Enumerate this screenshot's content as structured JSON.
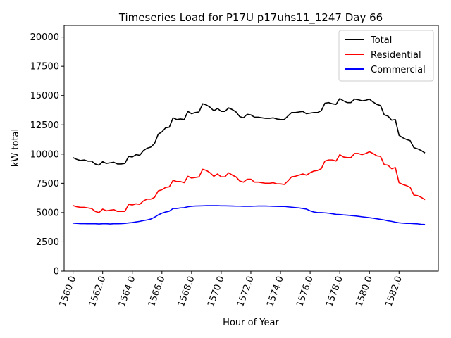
{
  "chart_data": {
    "type": "line",
    "title": "Timeseries Load for P17U p17uhs11_1247  Day 66",
    "xlabel": "Hour of Year",
    "ylabel": "kW total",
    "xlim": [
      1559.4,
      1584.65
    ],
    "ylim": [
      0,
      21000
    ],
    "x_ticks": [
      1560,
      1562,
      1564,
      1566,
      1568,
      1570,
      1572,
      1574,
      1576,
      1578,
      1580,
      1582
    ],
    "x_tick_labels": [
      "1560.0",
      "1562.0",
      "1564.0",
      "1566.0",
      "1568.0",
      "1570.0",
      "1572.0",
      "1574.0",
      "1576.0",
      "1578.0",
      "1580.0",
      "1582.0"
    ],
    "y_ticks": [
      0,
      2500,
      5000,
      7500,
      10000,
      12500,
      15000,
      17500,
      20000
    ],
    "y_tick_labels": [
      "0",
      "2500",
      "5000",
      "7500",
      "10000",
      "12500",
      "15000",
      "17500",
      "20000"
    ],
    "legend_position": "top-right",
    "x_start": 1560,
    "x_step": 0.25,
    "series": [
      {
        "name": "Total",
        "color": "#000000",
        "values": [
          9700,
          9550,
          9450,
          9500,
          9400,
          9400,
          9150,
          9050,
          9350,
          9200,
          9250,
          9300,
          9150,
          9150,
          9200,
          9800,
          9750,
          9950,
          9900,
          10300,
          10500,
          10600,
          10900,
          11700,
          11900,
          12250,
          12300,
          13100,
          12950,
          13000,
          12950,
          13650,
          13450,
          13550,
          13600,
          14300,
          14200,
          14000,
          13700,
          13900,
          13650,
          13650,
          13950,
          13800,
          13600,
          13200,
          13100,
          13400,
          13350,
          13150,
          13150,
          13100,
          13050,
          13050,
          13100,
          13000,
          12950,
          12950,
          13250,
          13550,
          13550,
          13600,
          13650,
          13450,
          13500,
          13550,
          13550,
          13700,
          14350,
          14400,
          14300,
          14250,
          14750,
          14550,
          14400,
          14400,
          14700,
          14650,
          14550,
          14600,
          14700,
          14450,
          14250,
          14150,
          13350,
          13250,
          12900,
          12950,
          11600,
          11400,
          11250,
          11150,
          10550,
          10450,
          10300,
          10100
        ]
      },
      {
        "name": "Residential",
        "color": "#ff0000",
        "values": [
          5600,
          5500,
          5450,
          5450,
          5400,
          5350,
          5100,
          5000,
          5300,
          5150,
          5200,
          5250,
          5100,
          5100,
          5100,
          5700,
          5650,
          5750,
          5700,
          6000,
          6150,
          6150,
          6300,
          6850,
          6950,
          7150,
          7200,
          7750,
          7650,
          7650,
          7550,
          8100,
          7950,
          8000,
          8050,
          8700,
          8600,
          8400,
          8100,
          8300,
          8050,
          8050,
          8400,
          8200,
          8050,
          7700,
          7600,
          7850,
          7850,
          7600,
          7600,
          7550,
          7500,
          7500,
          7550,
          7450,
          7450,
          7400,
          7700,
          8050,
          8100,
          8200,
          8300,
          8200,
          8400,
          8550,
          8600,
          8750,
          9400,
          9500,
          9500,
          9400,
          9950,
          9750,
          9700,
          9700,
          10050,
          10050,
          9950,
          10050,
          10200,
          10050,
          9850,
          9800,
          9100,
          9050,
          8750,
          8850,
          7550,
          7400,
          7300,
          7150,
          6500,
          6450,
          6300,
          6100
        ]
      },
      {
        "name": "Commercial",
        "color": "#0000ff",
        "values": [
          4100,
          4080,
          4060,
          4060,
          4050,
          4050,
          4050,
          4030,
          4050,
          4050,
          4030,
          4050,
          4050,
          4060,
          4080,
          4120,
          4150,
          4200,
          4250,
          4320,
          4370,
          4450,
          4600,
          4800,
          4950,
          5050,
          5120,
          5350,
          5350,
          5400,
          5420,
          5500,
          5540,
          5560,
          5570,
          5580,
          5590,
          5590,
          5590,
          5590,
          5580,
          5580,
          5570,
          5560,
          5550,
          5550,
          5540,
          5540,
          5540,
          5550,
          5560,
          5560,
          5560,
          5550,
          5540,
          5530,
          5520,
          5530,
          5490,
          5460,
          5430,
          5400,
          5350,
          5300,
          5150,
          5050,
          5000,
          5000,
          4980,
          4950,
          4900,
          4850,
          4830,
          4800,
          4780,
          4750,
          4720,
          4680,
          4640,
          4600,
          4560,
          4520,
          4470,
          4420,
          4370,
          4300,
          4250,
          4180,
          4130,
          4100,
          4080,
          4080,
          4060,
          4040,
          4000,
          3980
        ]
      }
    ]
  }
}
